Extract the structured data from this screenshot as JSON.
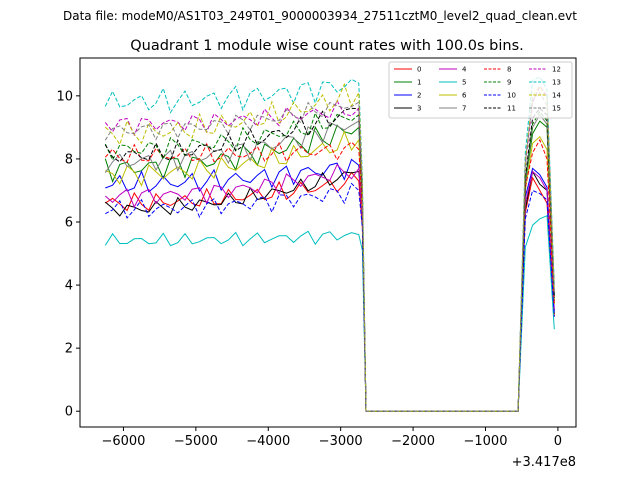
{
  "suptitle": "Data file: modeM0/AS1T03_249T01_9000003934_27511cztM0_level2_quad_clean.evt",
  "chart_data": {
    "type": "line",
    "title": "Quadrant 1 module wise count rates with 100.0s bins.",
    "xlabel": "",
    "ylabel": "",
    "offset_text": "+3.417e8",
    "xlim": [
      -6600,
      250
    ],
    "ylim": [
      -0.5,
      11.2
    ],
    "x_ticks": [
      -6000,
      -5000,
      -4000,
      -3000,
      -2000,
      -1000,
      0
    ],
    "x_tick_labels": [
      "−6000",
      "−5000",
      "−4000",
      "−3000",
      "−2000",
      "−1000",
      "0"
    ],
    "y_ticks": [
      0,
      2,
      4,
      6,
      8,
      10
    ],
    "y_tick_labels": [
      "0",
      "2",
      "4",
      "6",
      "8",
      "10"
    ],
    "legend_position": "top-right",
    "segments": [
      {
        "x_start": -6250,
        "x_end": -2750
      },
      {
        "x_start": -2650,
        "x_end": -550
      },
      {
        "x_start": -450,
        "x_end": -50
      }
    ],
    "series": [
      {
        "name": "0",
        "color": "#ff0000",
        "dash": "solid",
        "base": 6.6,
        "amp": 0.35,
        "end": 7.3,
        "gap_start": 5.8,
        "post": [
          6.3,
          7.4,
          7.0,
          6.6,
          3.0
        ]
      },
      {
        "name": "1",
        "color": "#008000",
        "dash": "solid",
        "base": 7.7,
        "amp": 0.45,
        "end": 9.0,
        "gap_start": 6.5,
        "post": [
          7.2,
          8.8,
          9.2,
          9.0,
          3.5
        ]
      },
      {
        "name": "2",
        "color": "#0000ff",
        "dash": "solid",
        "base": 7.2,
        "amp": 0.4,
        "end": 7.8,
        "gap_start": 6.0,
        "post": [
          6.8,
          7.7,
          7.5,
          7.1,
          3.2
        ]
      },
      {
        "name": "3",
        "color": "#000000",
        "dash": "solid",
        "base": 6.4,
        "amp": 0.3,
        "end": 7.6,
        "gap_start": 6.2,
        "post": [
          6.4,
          7.6,
          7.2,
          7.0,
          3.1
        ]
      },
      {
        "name": "4",
        "color": "#bf00bf",
        "dash": "solid",
        "base": 6.8,
        "amp": 0.35,
        "end": 7.7,
        "gap_start": 6.1,
        "post": [
          6.6,
          7.6,
          7.4,
          7.0,
          3.2
        ]
      },
      {
        "name": "5",
        "color": "#00bfbf",
        "dash": "solid",
        "base": 5.4,
        "amp": 0.25,
        "end": 5.6,
        "gap_start": 5.1,
        "post": [
          5.2,
          5.9,
          6.1,
          6.2,
          2.6
        ]
      },
      {
        "name": "6",
        "color": "#bfbf00",
        "dash": "solid",
        "base": 7.5,
        "amp": 0.4,
        "end": 8.6,
        "gap_start": 6.3,
        "post": [
          7.0,
          8.5,
          8.7,
          8.3,
          3.4
        ]
      },
      {
        "name": "7",
        "color": "#808080",
        "dash": "solid",
        "base": 7.9,
        "amp": 0.4,
        "end": 9.2,
        "gap_start": 6.6,
        "post": [
          7.2,
          9.0,
          9.4,
          9.1,
          3.6
        ]
      },
      {
        "name": "8",
        "color": "#ff0000",
        "dash": "dashed",
        "base": 8.1,
        "amp": 0.35,
        "end": 8.3,
        "gap_start": 6.4,
        "post": [
          7.1,
          8.2,
          8.6,
          8.0,
          3.4
        ]
      },
      {
        "name": "9",
        "color": "#008000",
        "dash": "dashed",
        "base": 8.3,
        "amp": 0.4,
        "end": 9.4,
        "gap_start": 6.7,
        "post": [
          7.3,
          9.1,
          9.5,
          9.2,
          3.6
        ]
      },
      {
        "name": "10",
        "color": "#0000ff",
        "dash": "dashed",
        "base": 6.4,
        "amp": 0.35,
        "end": 7.0,
        "gap_start": 5.8,
        "post": [
          6.1,
          7.0,
          6.9,
          6.7,
          3.0
        ]
      },
      {
        "name": "11",
        "color": "#000000",
        "dash": "dashed",
        "base": 8.1,
        "amp": 0.4,
        "end": 9.6,
        "gap_start": 6.8,
        "post": [
          7.4,
          9.3,
          9.6,
          9.4,
          3.6
        ]
      },
      {
        "name": "12",
        "color": "#bf00bf",
        "dash": "dashed",
        "base": 9.1,
        "amp": 0.35,
        "end": 9.6,
        "gap_start": 7.0,
        "post": [
          7.8,
          9.8,
          10.3,
          10.0,
          3.8
        ]
      },
      {
        "name": "13",
        "color": "#00bfbf",
        "dash": "dashed",
        "base": 9.8,
        "amp": 0.45,
        "end": 10.4,
        "gap_start": 7.4,
        "post": [
          8.2,
          10.5,
          10.6,
          10.2,
          4.0
        ]
      },
      {
        "name": "14",
        "color": "#bfbf00",
        "dash": "dashed",
        "base": 8.8,
        "amp": 0.45,
        "end": 10.1,
        "gap_start": 7.1,
        "post": [
          7.9,
          10.0,
          10.3,
          9.9,
          3.8
        ]
      },
      {
        "name": "15",
        "color": "#808080",
        "dash": "dashed",
        "base": 8.9,
        "amp": 0.35,
        "end": 9.8,
        "gap_start": 7.1,
        "post": [
          7.9,
          9.9,
          10.1,
          9.7,
          3.8
        ]
      }
    ]
  }
}
